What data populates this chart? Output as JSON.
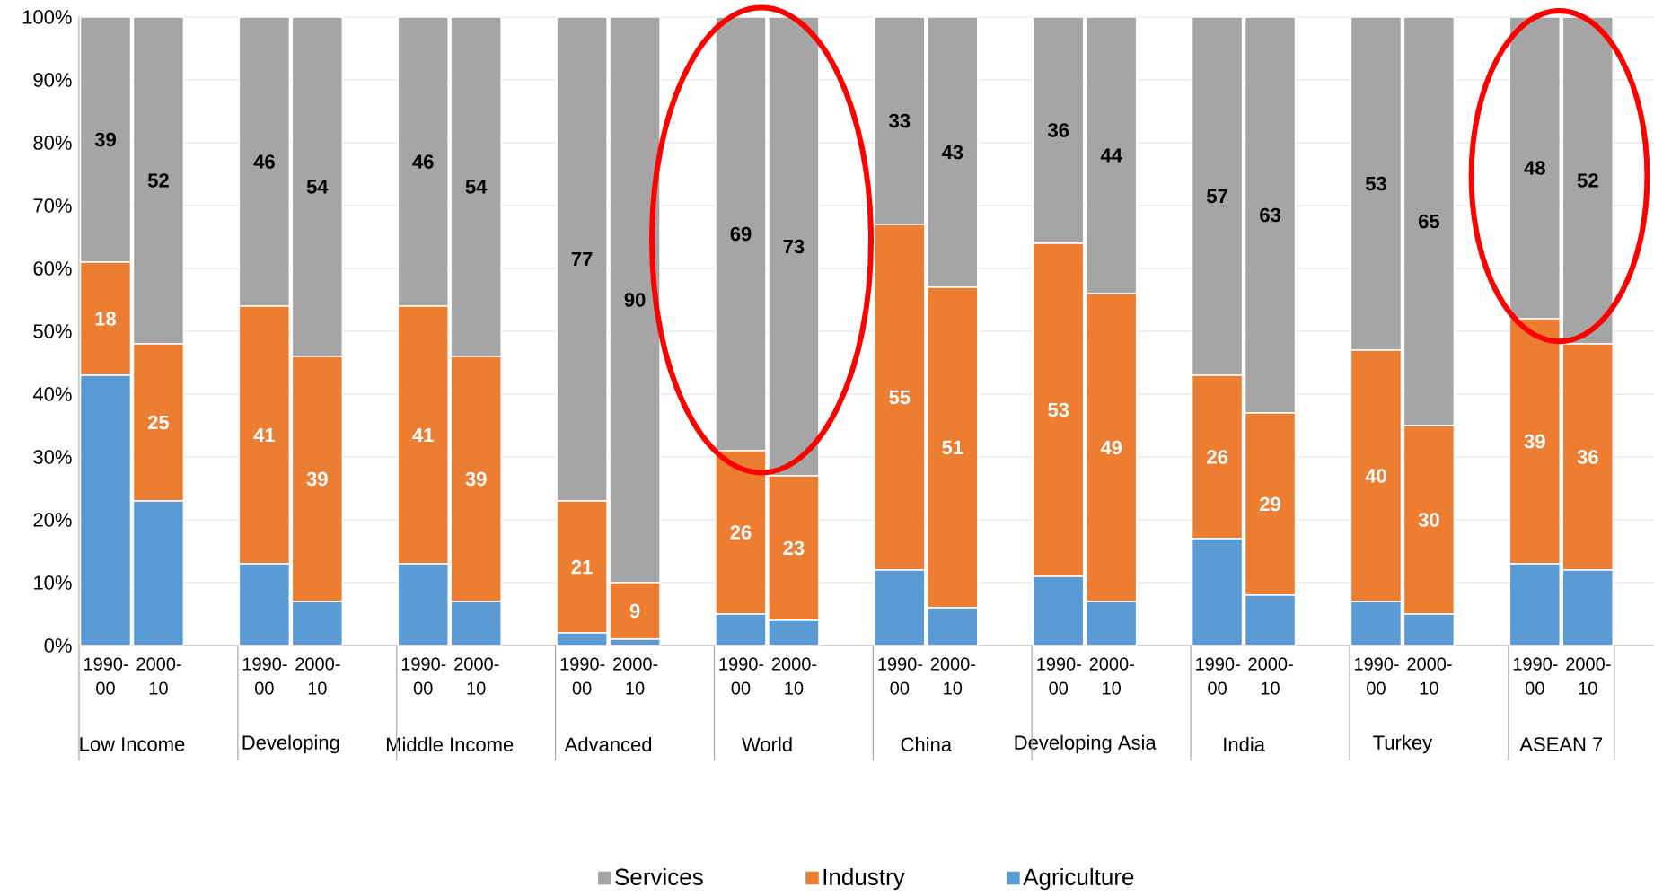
{
  "chart_data": {
    "type": "bar",
    "stacked": true,
    "categories": [
      "1990-00",
      "2000-10",
      "1990-00",
      "2000-10",
      "1990-00",
      "2000-10",
      "1990-00",
      "2000-10",
      "1990-00",
      "2000-10",
      "1990-00",
      "2000-10",
      "1990-00",
      "2000-10",
      "1990-00",
      "2000-10",
      "1990-00",
      "2000-10",
      "1990-00",
      "2000-10"
    ],
    "annotations": [
      "Low Income",
      "Developing",
      "Middle Income",
      "Advanced",
      "World",
      "China",
      "Developing Asia",
      "India",
      "Turkey",
      "ASEAN 7"
    ],
    "series": [
      {
        "name": "Agriculture",
        "color": "#5b9bd5",
        "values": [
          43,
          23,
          13,
          7,
          13,
          7,
          2,
          1,
          5,
          4,
          12,
          6,
          11,
          7,
          17,
          8,
          7,
          5,
          13,
          12
        ]
      },
      {
        "name": "Industry",
        "color": "#ed7d31",
        "values": [
          18,
          25,
          41,
          39,
          41,
          39,
          21,
          9,
          26,
          23,
          55,
          51,
          53,
          49,
          26,
          29,
          40,
          30,
          39,
          36
        ],
        "value_labels": [
          "18",
          "25",
          "41",
          "39",
          "41",
          "39",
          "21",
          "9",
          "26",
          "23",
          "55",
          "51",
          "53",
          "49",
          "26",
          "29",
          "40",
          "30",
          "39",
          "36"
        ]
      },
      {
        "name": "Services",
        "color": "#a5a5a5",
        "values": [
          39,
          52,
          46,
          54,
          46,
          54,
          77,
          90,
          69,
          73,
          33,
          43,
          36,
          44,
          57,
          63,
          53,
          65,
          48,
          52
        ],
        "value_labels": [
          "39",
          "52",
          "46",
          "54",
          "46",
          "54",
          "77",
          "90",
          "69",
          "73",
          "33",
          "43",
          "36",
          "44",
          "57",
          "63",
          "53",
          "65",
          "48",
          "52"
        ]
      }
    ],
    "ylim": [
      0,
      100
    ],
    "yticks": [
      {
        "value": 0,
        "label": "0%"
      },
      {
        "value": 10,
        "label": "10%"
      },
      {
        "value": 20,
        "label": "20%"
      },
      {
        "value": 30,
        "label": "30%"
      },
      {
        "value": 40,
        "label": "40%"
      },
      {
        "value": 50,
        "label": "50%"
      },
      {
        "value": 60,
        "label": "60%"
      },
      {
        "value": 70,
        "label": "70%"
      },
      {
        "value": 80,
        "label": "80%"
      },
      {
        "value": 90,
        "label": "90%"
      },
      {
        "value": 100,
        "label": "100%"
      }
    ],
    "grid": "y",
    "legend": "bottom"
  }
}
